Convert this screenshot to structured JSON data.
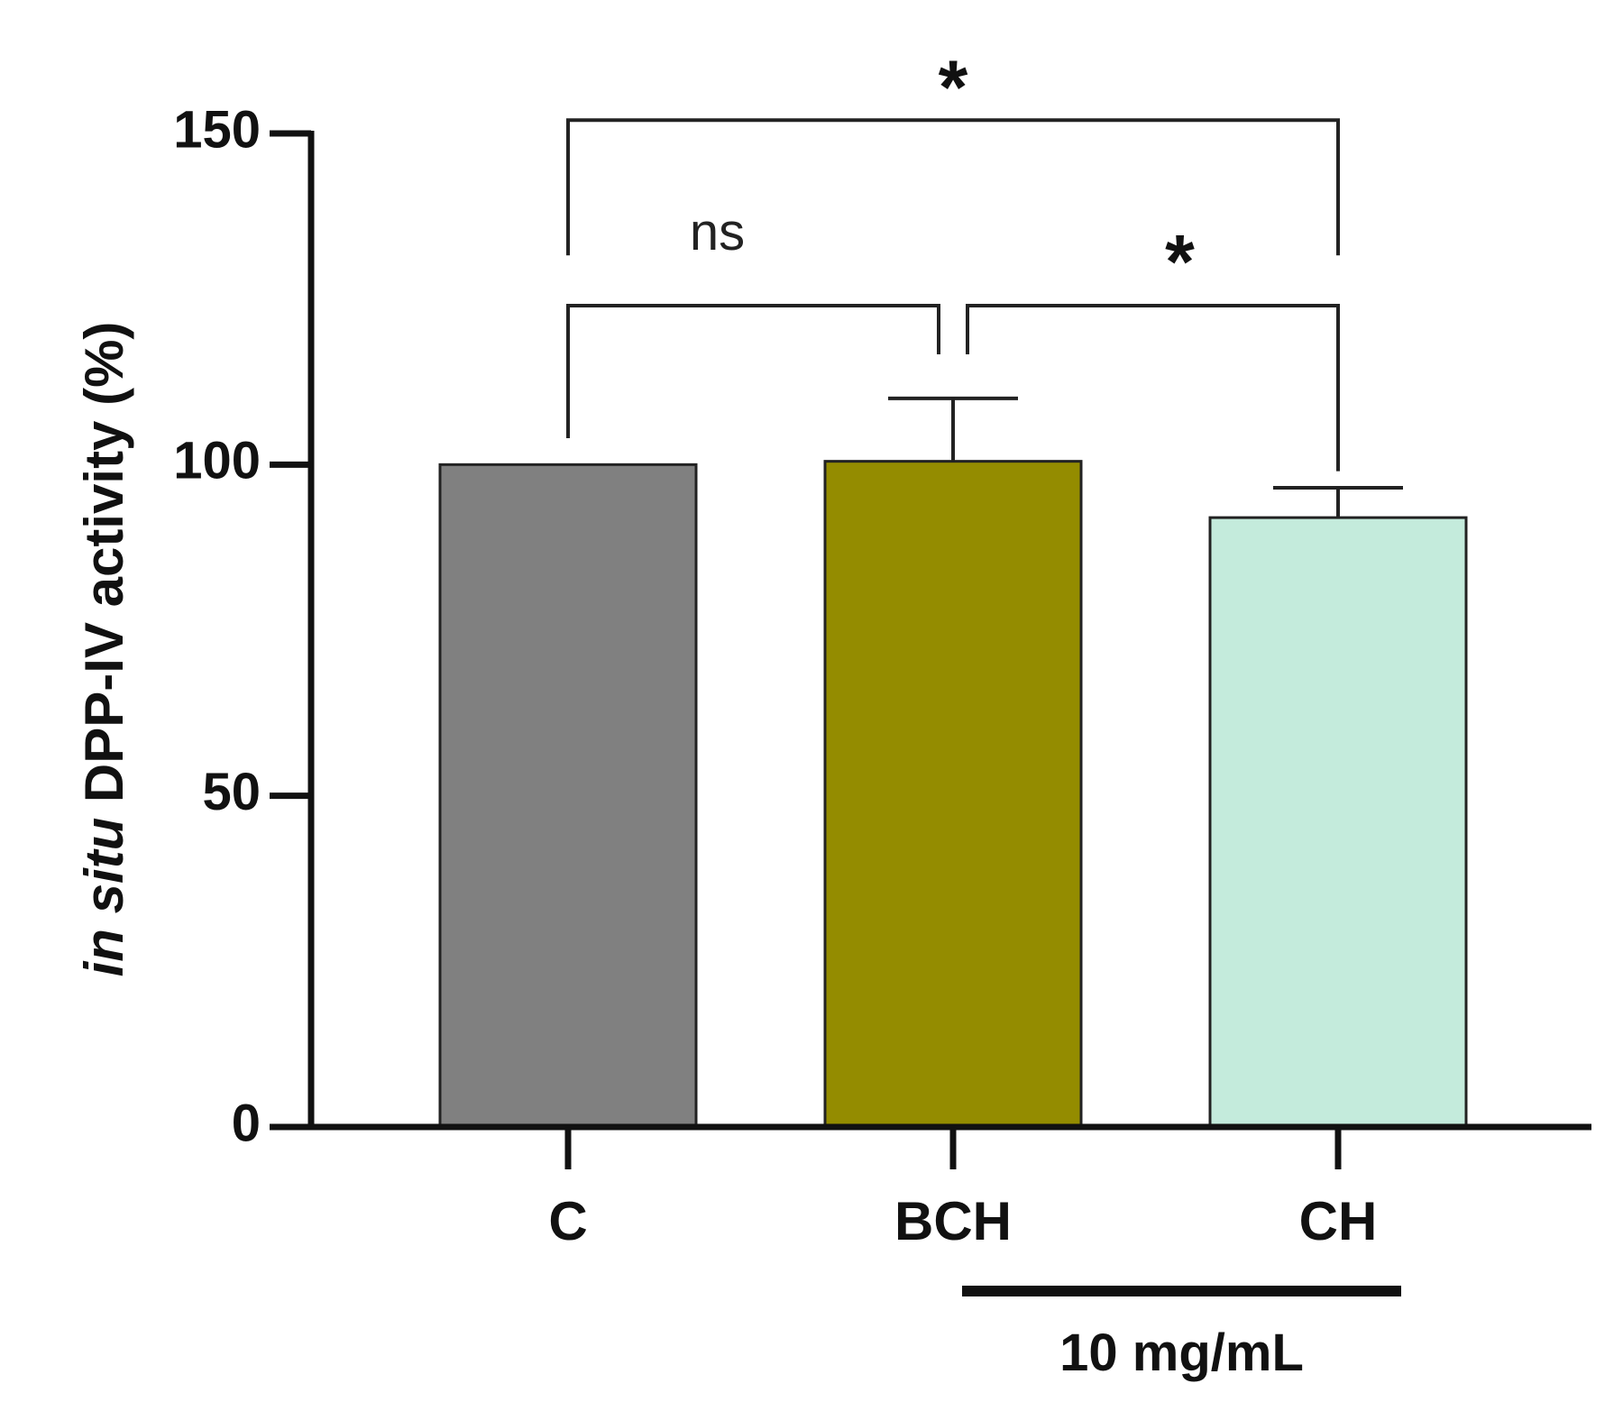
{
  "chart_data": {
    "type": "bar",
    "categories": [
      "C",
      "BCH",
      "CH"
    ],
    "values": [
      100,
      100.5,
      92
    ],
    "errors": [
      0,
      9.5,
      4.5
    ],
    "colors": [
      "#808080",
      "#948c00",
      "#c4ebdc"
    ],
    "ylim": [
      0,
      150
    ],
    "yticks": [
      0,
      50,
      100,
      150
    ],
    "ylabel_italic": "in situ",
    "ylabel_rest": " DPP-IV activity  (%)",
    "xlabel": "",
    "title": "",
    "significance": [
      {
        "from": 0,
        "to": 2,
        "label": "*",
        "level": 152
      },
      {
        "from": 0,
        "to": 1,
        "label": "ns",
        "level": 124
      },
      {
        "from": 1,
        "to": 2,
        "label": "*",
        "level": 124
      }
    ],
    "group_annotation": {
      "from": 1,
      "to": 2,
      "label": "10 mg/mL"
    }
  }
}
